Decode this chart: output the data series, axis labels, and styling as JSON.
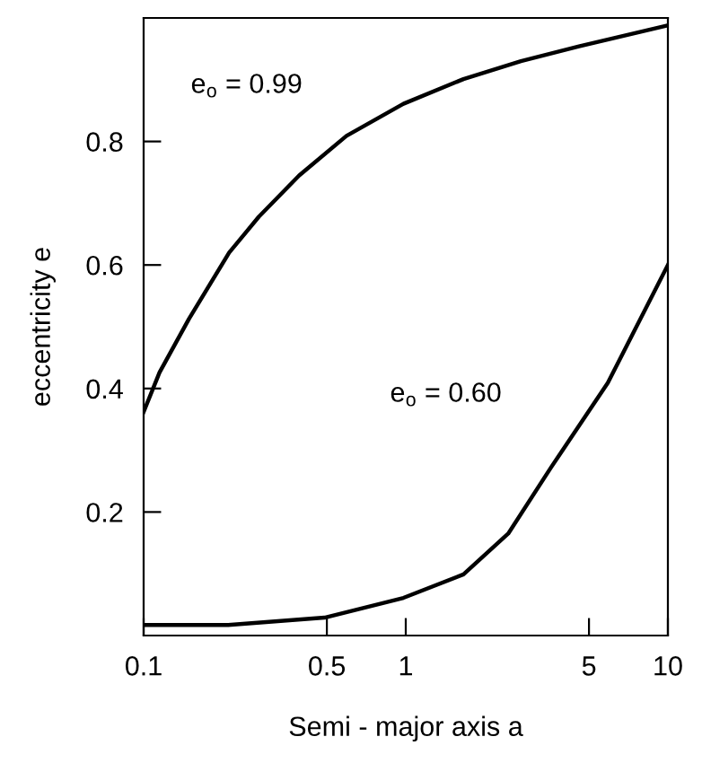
{
  "chart_data": {
    "type": "line",
    "xlabel": "Semi - major axis a",
    "ylabel": "eccentricity e",
    "log": "x",
    "xlim": [
      0.1,
      10
    ],
    "xticks": [
      0.1,
      0.5,
      1,
      5,
      10
    ],
    "ylim": [
      0,
      1.0
    ],
    "yticks": [
      0.2,
      0.4,
      0.6,
      0.8
    ],
    "grid": false,
    "legend": false,
    "marker": "none",
    "line_style": "solid",
    "series": [
      {
        "name": "e$_{o}$ = 0.99",
        "color": "#000000",
        "x": [
          0.1,
          0.115,
          0.149,
          0.212,
          0.275,
          0.392,
          0.594,
          0.98,
          1.66,
          2.75,
          4.58,
          10
        ],
        "values": [
          0.362,
          0.426,
          0.513,
          0.62,
          0.678,
          0.745,
          0.809,
          0.861,
          0.901,
          0.93,
          0.954,
          0.988
        ]
      },
      {
        "name": "e$_{o}$ = 0.60",
        "color": "#000000",
        "x": [
          0.1,
          0.21,
          0.49,
          0.98,
          1.66,
          2.46,
          3.58,
          5.9,
          10
        ],
        "values": [
          0.017,
          0.017,
          0.029,
          0.061,
          0.099,
          0.165,
          0.272,
          0.409,
          0.6
        ]
      }
    ]
  }
}
